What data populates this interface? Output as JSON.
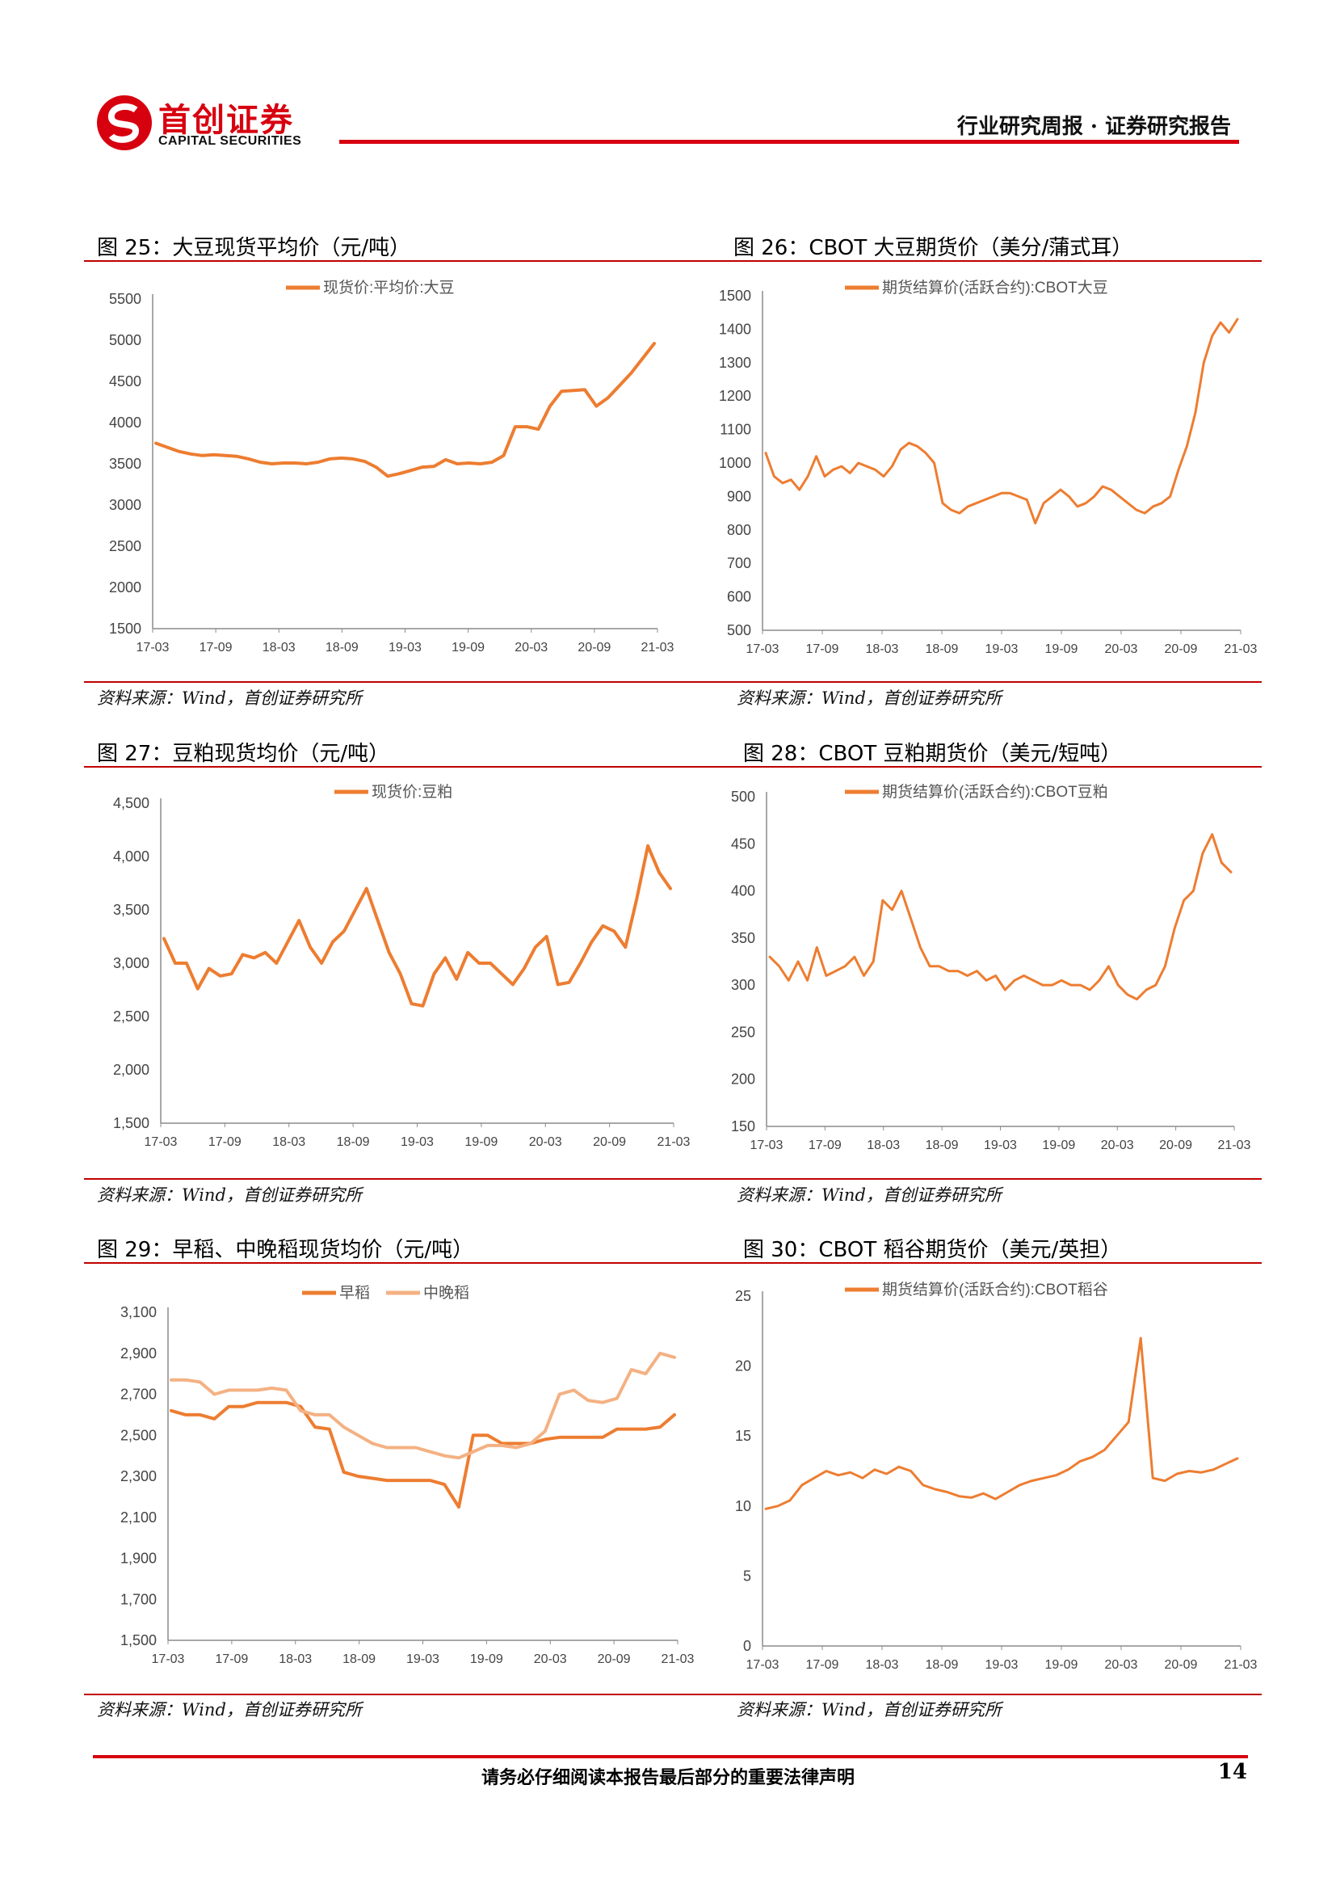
{
  "header": {
    "logo_cn": "首创证券",
    "logo_en": "CAPITAL SECURITIES",
    "report_type": "行业研究周报 · 证券研究报告",
    "brand_color": "#d7000f"
  },
  "source_text": "资料来源：Wind，首创证券研究所",
  "footer": {
    "disclaimer": "请务必仔细阅读本报告最后部分的重要法律声明",
    "page": "14"
  },
  "colors": {
    "series": "#ed7d31",
    "series_light": "#f4b183",
    "rule": "#c00000"
  },
  "chart_data": [
    {
      "id": "fig25",
      "type": "line",
      "title": "图 25：大豆现货平均价（元/吨）",
      "legend": [
        "现货价:平均价:大豆"
      ],
      "y_ticks": [
        "5500",
        "5000",
        "4500",
        "4000",
        "3500",
        "3000",
        "2500",
        "2000",
        "1500"
      ],
      "ylim": [
        1500,
        5500
      ],
      "x_ticks": [
        "17-03",
        "17-09",
        "18-03",
        "18-09",
        "19-03",
        "19-09",
        "20-03",
        "20-09",
        "21-03"
      ],
      "series": [
        {
          "name": "现货价:平均价:大豆",
          "color": "#ed7d31",
          "width": 4,
          "values": [
            3750,
            3700,
            3650,
            3620,
            3600,
            3610,
            3600,
            3590,
            3560,
            3520,
            3500,
            3510,
            3510,
            3500,
            3520,
            3560,
            3570,
            3560,
            3530,
            3460,
            3350,
            3380,
            3420,
            3460,
            3470,
            3550,
            3500,
            3510,
            3500,
            3520,
            3600,
            3950,
            3950,
            3920,
            4200,
            4380,
            4390,
            4400,
            4200,
            4300,
            4450,
            4600,
            4780,
            4960
          ]
        }
      ]
    },
    {
      "id": "fig26",
      "type": "line",
      "title": "图 26：CBOT 大豆期货价（美分/蒲式耳）",
      "legend": [
        "期货结算价(活跃合约):CBOT大豆"
      ],
      "y_ticks": [
        "1500",
        "1400",
        "1300",
        "1200",
        "1100",
        "1000",
        "900",
        "800",
        "700",
        "600",
        "500"
      ],
      "ylim": [
        500,
        1500
      ],
      "x_ticks": [
        "17-03",
        "17-09",
        "18-03",
        "18-09",
        "19-03",
        "19-09",
        "20-03",
        "20-09",
        "21-03"
      ],
      "series": [
        {
          "name": "期货结算价(活跃合约):CBOT大豆",
          "color": "#ed7d31",
          "width": 3,
          "values": [
            1030,
            960,
            940,
            950,
            920,
            960,
            1020,
            960,
            980,
            990,
            970,
            1000,
            990,
            980,
            960,
            990,
            1040,
            1060,
            1050,
            1030,
            1000,
            880,
            860,
            850,
            870,
            880,
            890,
            900,
            910,
            910,
            900,
            890,
            820,
            880,
            900,
            920,
            900,
            870,
            880,
            900,
            930,
            920,
            900,
            880,
            860,
            850,
            870,
            880,
            900,
            980,
            1050,
            1150,
            1300,
            1380,
            1420,
            1390,
            1430
          ]
        }
      ]
    },
    {
      "id": "fig27",
      "type": "line",
      "title": "图 27：豆粕现货均价（元/吨）",
      "legend": [
        "现货价:豆粕"
      ],
      "y_ticks": [
        "4,500",
        "4,000",
        "3,500",
        "3,000",
        "2,500",
        "2,000",
        "1,500"
      ],
      "ylim": [
        1500,
        4500
      ],
      "x_ticks": [
        "17-03",
        "17-09",
        "18-03",
        "18-09",
        "19-03",
        "19-09",
        "20-03",
        "20-09",
        "21-03"
      ],
      "series": [
        {
          "name": "现货价:豆粕",
          "color": "#ed7d31",
          "width": 4,
          "values": [
            3230,
            3000,
            3000,
            2760,
            2950,
            2880,
            2900,
            3080,
            3050,
            3100,
            3000,
            3200,
            3400,
            3150,
            3000,
            3200,
            3300,
            3500,
            3700,
            3400,
            3100,
            2900,
            2620,
            2600,
            2900,
            3050,
            2850,
            3100,
            3000,
            3000,
            2900,
            2800,
            2950,
            3150,
            3250,
            2800,
            2820,
            3000,
            3200,
            3350,
            3300,
            3150,
            3600,
            4100,
            3850,
            3700
          ]
        }
      ]
    },
    {
      "id": "fig28",
      "type": "line",
      "title": "图 28：CBOT 豆粕期货价（美元/短吨）",
      "legend": [
        "期货结算价(活跃合约):CBOT豆粕"
      ],
      "y_ticks": [
        "500",
        "450",
        "400",
        "350",
        "300",
        "250",
        "200",
        "150"
      ],
      "ylim": [
        150,
        500
      ],
      "x_ticks": [
        "17-03",
        "17-09",
        "18-03",
        "18-09",
        "19-03",
        "19-09",
        "20-03",
        "20-09",
        "21-03"
      ],
      "series": [
        {
          "name": "期货结算价(活跃合约):CBOT豆粕",
          "color": "#ed7d31",
          "width": 3,
          "values": [
            330,
            320,
            305,
            325,
            305,
            340,
            310,
            315,
            320,
            330,
            310,
            325,
            390,
            380,
            400,
            370,
            340,
            320,
            320,
            315,
            315,
            310,
            315,
            305,
            310,
            295,
            305,
            310,
            305,
            300,
            300,
            305,
            300,
            300,
            295,
            305,
            320,
            300,
            290,
            285,
            295,
            300,
            320,
            360,
            390,
            400,
            440,
            460,
            430,
            420
          ]
        }
      ]
    },
    {
      "id": "fig29",
      "type": "line",
      "title": "图 29：早稻、中晚稻现货均价（元/吨）",
      "legend": [
        "早稻",
        "中晚稻"
      ],
      "y_ticks": [
        "3,100",
        "2,900",
        "2,700",
        "2,500",
        "2,300",
        "2,100",
        "1,900",
        "1,700",
        "1,500"
      ],
      "ylim": [
        1500,
        3100
      ],
      "x_ticks": [
        "17-03",
        "17-09",
        "18-03",
        "18-09",
        "19-03",
        "19-09",
        "20-03",
        "20-09",
        "21-03"
      ],
      "series": [
        {
          "name": "早稻",
          "color": "#ed7d31",
          "width": 4,
          "values": [
            2620,
            2600,
            2600,
            2580,
            2640,
            2640,
            2660,
            2660,
            2660,
            2640,
            2540,
            2530,
            2320,
            2300,
            2290,
            2280,
            2280,
            2280,
            2280,
            2260,
            2150,
            2500,
            2500,
            2460,
            2460,
            2460,
            2480,
            2490,
            2490,
            2490,
            2490,
            2530,
            2530,
            2530,
            2540,
            2600
          ]
        },
        {
          "name": "中晚稻",
          "color": "#f4b183",
          "width": 4,
          "values": [
            2770,
            2770,
            2760,
            2700,
            2720,
            2720,
            2720,
            2730,
            2720,
            2620,
            2600,
            2600,
            2540,
            2500,
            2460,
            2440,
            2440,
            2440,
            2420,
            2400,
            2390,
            2420,
            2450,
            2450,
            2440,
            2460,
            2520,
            2700,
            2720,
            2670,
            2660,
            2680,
            2820,
            2800,
            2900,
            2880
          ]
        }
      ]
    },
    {
      "id": "fig30",
      "type": "line",
      "title": "图 30：CBOT 稻谷期货价（美元/英担）",
      "legend": [
        "期货结算价(活跃合约):CBOT稻谷"
      ],
      "y_ticks": [
        "25",
        "20",
        "15",
        "10",
        "5",
        "0"
      ],
      "ylim": [
        0,
        25
      ],
      "x_ticks": [
        "17-03",
        "17-09",
        "18-03",
        "18-09",
        "19-03",
        "19-09",
        "20-03",
        "20-09",
        "21-03"
      ],
      "series": [
        {
          "name": "期货结算价(活跃合约):CBOT稻谷",
          "color": "#ed7d31",
          "width": 3,
          "values": [
            9.8,
            10.0,
            10.4,
            11.5,
            12.0,
            12.5,
            12.2,
            12.4,
            12.0,
            12.6,
            12.3,
            12.8,
            12.5,
            11.5,
            11.2,
            11.0,
            10.7,
            10.6,
            10.9,
            10.5,
            11.0,
            11.5,
            11.8,
            12.0,
            12.2,
            12.6,
            13.2,
            13.5,
            14.0,
            15.0,
            16.0,
            22.0,
            12.0,
            11.8,
            12.3,
            12.5,
            12.4,
            12.6,
            13.0,
            13.4
          ]
        }
      ]
    }
  ]
}
